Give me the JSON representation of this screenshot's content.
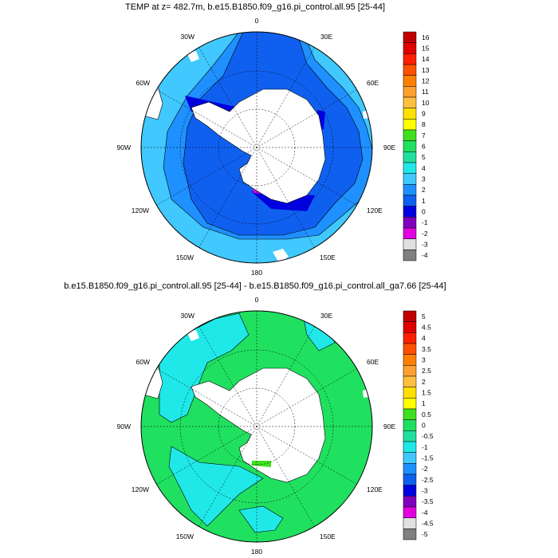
{
  "panels": [
    {
      "title": "TEMP at z= 482.7m, b.e15.B1850.f09_g16.pi_control.all.95 [25-44]",
      "lon_labels": [
        "0",
        "30E",
        "60E",
        "90E",
        "120E",
        "150E",
        "180",
        "150W",
        "120W",
        "90W",
        "60W",
        "30W"
      ],
      "colorbar": {
        "labels": [
          "16",
          "15",
          "14",
          "13",
          "12",
          "11",
          "10",
          "9",
          "8",
          "7",
          "6",
          "5",
          "4",
          "3",
          "2",
          "1",
          "0",
          "-1",
          "-2",
          "-3",
          "-4"
        ],
        "colors": [
          "#c00000",
          "#e00000",
          "#ff2000",
          "#ff5000",
          "#ff8000",
          "#ffa030",
          "#ffc040",
          "#ffe000",
          "#ffff00",
          "#40e020",
          "#20e060",
          "#20e0a0",
          "#20e8e8",
          "#40c8ff",
          "#1e90ff",
          "#1060f0",
          "#0000e0",
          "#8000c0",
          "#e000e0",
          "#e0e0e0",
          "#808080"
        ]
      }
    },
    {
      "title": "b.e15.B1850.f09_g16.pi_control.all.95 [25-44] - b.e15.B1850.f09_g16.pi_control.all_ga7.66 [25-44]",
      "lon_labels": [
        "0",
        "30E",
        "60E",
        "90E",
        "120E",
        "150E",
        "180",
        "150W",
        "120W",
        "90W",
        "60W",
        "30W"
      ],
      "colorbar": {
        "labels": [
          "5",
          "4.5",
          "4",
          "3.5",
          "3",
          "2.5",
          "2",
          "1.5",
          "1",
          "0.5",
          "0",
          "-0.5",
          "-1",
          "-1.5",
          "-2",
          "-2.5",
          "-3",
          "-3.5",
          "-4",
          "-4.5",
          "-5"
        ],
        "colors": [
          "#c00000",
          "#e00000",
          "#ff2000",
          "#ff5000",
          "#ff8000",
          "#ffa030",
          "#ffc040",
          "#ffe000",
          "#ffff00",
          "#40e020",
          "#20e060",
          "#20e0a0",
          "#20e8e8",
          "#40c8ff",
          "#1e90ff",
          "#1060f0",
          "#0000e0",
          "#8000c0",
          "#e000e0",
          "#e0e0e0",
          "#808080"
        ]
      }
    }
  ]
}
